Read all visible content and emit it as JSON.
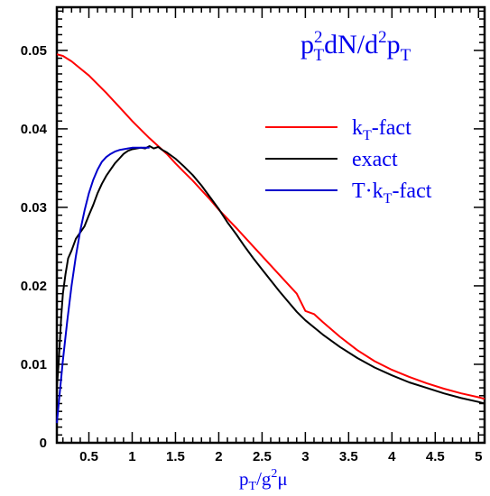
{
  "chart_data": {
    "type": "line",
    "title": {
      "p1": "p",
      "sup": "2",
      "sub1": "T",
      "mid": "dN/d",
      "sup2": "2",
      "p2": "p",
      "sub2": "T"
    },
    "xlabel": {
      "p": "p",
      "sub": "T",
      "rest": "/g",
      "sup": "2",
      "mu": "μ"
    },
    "ylabel": "",
    "xlim": [
      0.13,
      5.07
    ],
    "ylim": [
      0,
      0.0555
    ],
    "xticks": [
      0.5,
      1,
      1.5,
      2,
      2.5,
      3,
      3.5,
      4,
      4.5,
      5
    ],
    "xtick_labels": [
      "0.5",
      "1",
      "1.5",
      "2",
      "2.5",
      "3",
      "3.5",
      "4",
      "4.5",
      "5"
    ],
    "yticks": [
      0,
      0.01,
      0.02,
      0.03,
      0.04,
      0.05
    ],
    "ytick_labels": [
      "0",
      "0.01",
      "0.02",
      "0.03",
      "0.04",
      "0.05"
    ],
    "grid": false,
    "legend_position": "right",
    "series": [
      {
        "name": "kT-fact",
        "legend": {
          "main": "k",
          "sub": "T",
          "rest": "-fact"
        },
        "color": "#ff0000",
        "x": [
          0.13,
          0.2,
          0.3,
          0.4,
          0.5,
          0.6,
          0.7,
          0.8,
          0.9,
          1.0,
          1.1,
          1.2,
          1.3,
          1.4,
          1.5,
          1.6,
          1.7,
          1.8,
          1.9,
          2.0,
          2.2,
          2.4,
          2.6,
          2.8,
          2.9,
          3.0,
          3.1,
          3.2,
          3.4,
          3.6,
          3.8,
          4.0,
          4.2,
          4.4,
          4.6,
          4.8,
          5.0,
          5.07
        ],
        "y": [
          0.0495,
          0.0493,
          0.0486,
          0.0477,
          0.0468,
          0.0457,
          0.0446,
          0.0434,
          0.0422,
          0.041,
          0.0399,
          0.0388,
          0.0378,
          0.0368,
          0.0356,
          0.0345,
          0.0334,
          0.0322,
          0.031,
          0.0297,
          0.0274,
          0.025,
          0.0226,
          0.0202,
          0.019,
          0.0168,
          0.0164,
          0.0154,
          0.0135,
          0.0118,
          0.0104,
          0.0093,
          0.0084,
          0.0076,
          0.0069,
          0.0063,
          0.0058,
          0.0056
        ]
      },
      {
        "name": "exact",
        "legend": {
          "main": "exact",
          "sub": "",
          "rest": ""
        },
        "color": "#000000",
        "x": [
          0.13,
          0.15,
          0.18,
          0.2,
          0.23,
          0.26,
          0.3,
          0.35,
          0.4,
          0.45,
          0.5,
          0.55,
          0.6,
          0.65,
          0.7,
          0.75,
          0.8,
          0.85,
          0.9,
          0.95,
          1.0,
          1.05,
          1.1,
          1.15,
          1.2,
          1.25,
          1.3,
          1.35,
          1.4,
          1.5,
          1.6,
          1.7,
          1.8,
          1.9,
          2.0,
          2.1,
          2.2,
          2.3,
          2.4,
          2.5,
          2.6,
          2.7,
          2.8,
          2.9,
          3.0,
          3.2,
          3.4,
          3.6,
          3.8,
          4.0,
          4.2,
          4.4,
          4.6,
          4.8,
          5.0,
          5.07
        ],
        "y": [
          0.007,
          0.01,
          0.016,
          0.019,
          0.0215,
          0.0235,
          0.0245,
          0.026,
          0.0268,
          0.0276,
          0.029,
          0.0303,
          0.0318,
          0.033,
          0.034,
          0.0348,
          0.0356,
          0.0362,
          0.0368,
          0.0372,
          0.0374,
          0.0375,
          0.0376,
          0.0375,
          0.0378,
          0.0375,
          0.0377,
          0.0373,
          0.037,
          0.0362,
          0.0352,
          0.0341,
          0.0328,
          0.0313,
          0.0298,
          0.0281,
          0.0266,
          0.025,
          0.0235,
          0.0221,
          0.0207,
          0.0193,
          0.018,
          0.0167,
          0.0156,
          0.0138,
          0.0122,
          0.0108,
          0.0096,
          0.0086,
          0.0077,
          0.007,
          0.0063,
          0.0057,
          0.0052,
          0.005
        ]
      },
      {
        "name": "T·kT-fact",
        "legend": {
          "main": "T·k",
          "sub": "T",
          "rest": "-fact"
        },
        "color": "#0000cc",
        "x": [
          0.13,
          0.16,
          0.2,
          0.25,
          0.3,
          0.35,
          0.4,
          0.45,
          0.5,
          0.55,
          0.6,
          0.65,
          0.7,
          0.75,
          0.8,
          0.85,
          0.9,
          0.95,
          1.0,
          1.05,
          1.1,
          1.15,
          1.2
        ],
        "y": [
          0.0025,
          0.006,
          0.0105,
          0.0155,
          0.02,
          0.0238,
          0.027,
          0.0296,
          0.0318,
          0.0335,
          0.0348,
          0.0358,
          0.0364,
          0.0368,
          0.0371,
          0.0373,
          0.0374,
          0.0375,
          0.0376,
          0.0376,
          0.0376,
          0.0376,
          0.0376
        ]
      }
    ]
  }
}
